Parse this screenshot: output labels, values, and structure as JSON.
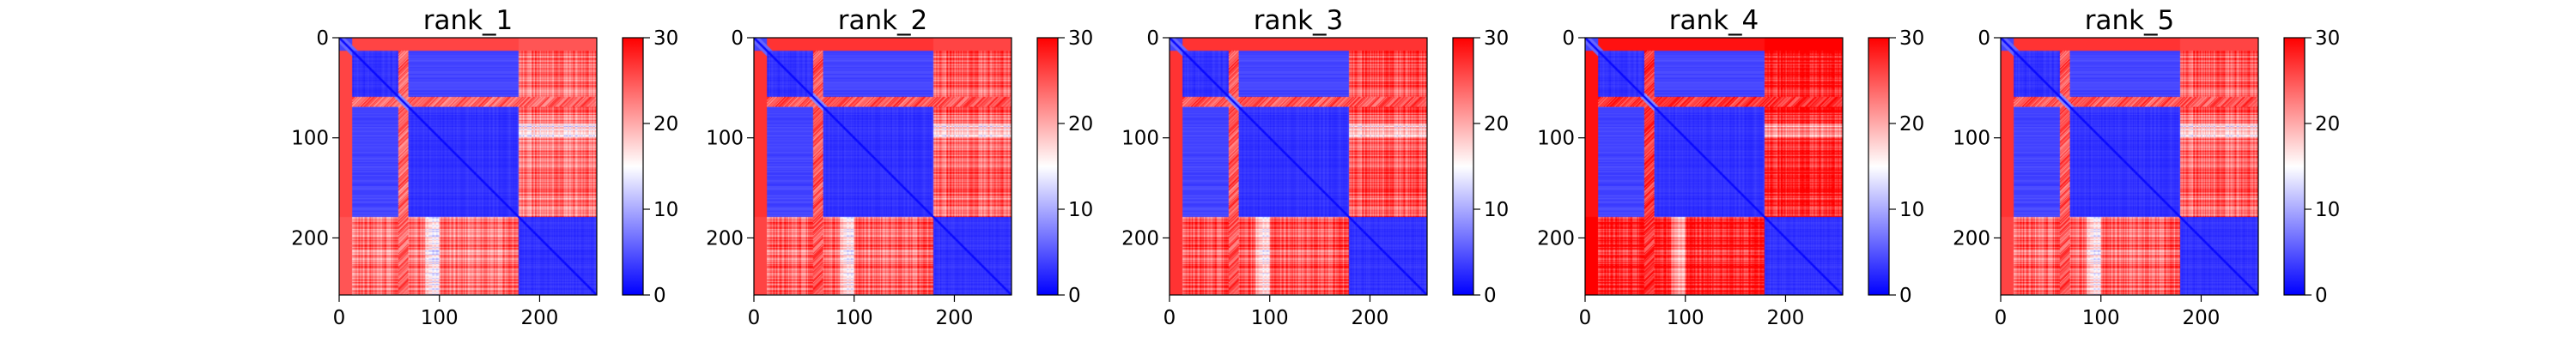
{
  "chart_data": {
    "type": "heatmap",
    "description_colormap": "bwr",
    "colormap_colors": [
      "#0000ff",
      "#ffffff",
      "#ff0000"
    ],
    "clim": [
      0,
      30
    ],
    "colorbar_ticks": [
      "0",
      "10",
      "20",
      "30"
    ],
    "x_ticks": [
      "0",
      "100",
      "200"
    ],
    "y_ticks": [
      "0",
      "100",
      "200"
    ],
    "matrix_size": 257,
    "domains": [
      [
        0,
        12
      ],
      [
        13,
        58
      ],
      [
        59,
        68
      ],
      [
        69,
        178
      ],
      [
        179,
        257
      ]
    ],
    "panels": [
      {
        "title": "rank_1",
        "domain_pae": 3,
        "inter_pae": 24,
        "c_terminal_pae": 23
      },
      {
        "title": "rank_2",
        "domain_pae": 3,
        "inter_pae": 25,
        "c_terminal_pae": 24
      },
      {
        "title": "rank_3",
        "domain_pae": 3,
        "inter_pae": 25,
        "c_terminal_pae": 25
      },
      {
        "title": "rank_4",
        "domain_pae": 3,
        "inter_pae": 27,
        "c_terminal_pae": 28
      },
      {
        "title": "rank_5",
        "domain_pae": 3,
        "inter_pae": 25,
        "c_terminal_pae": 24
      }
    ]
  }
}
